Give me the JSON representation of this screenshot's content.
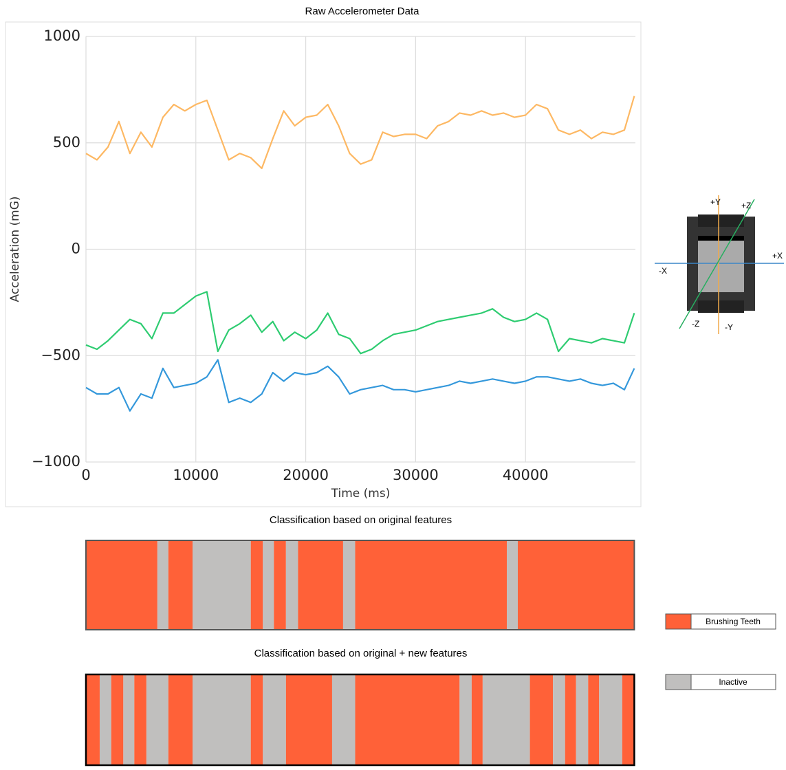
{
  "chart_data": [
    {
      "type": "line",
      "title": "Raw Accelerometer Data",
      "x_label": "Time (ms)",
      "y_label": "Acceleration (mG)",
      "xlim": [
        0,
        50000
      ],
      "ylim": [
        -1000,
        1000
      ],
      "xticks": [
        0,
        10000,
        20000,
        30000,
        40000
      ],
      "yticks": [
        {
          "value": -1000,
          "label": "−1000"
        },
        {
          "value": -500,
          "label": "−500"
        },
        0,
        500,
        1000
      ],
      "grid": true,
      "x": [
        0,
        1000,
        2000,
        3000,
        4000,
        5000,
        6000,
        7000,
        8000,
        9000,
        10000,
        11000,
        12000,
        13000,
        14000,
        15000,
        16000,
        17000,
        18000,
        19000,
        20000,
        21000,
        22000,
        23000,
        24000,
        25000,
        26000,
        27000,
        28000,
        29000,
        30000,
        31000,
        32000,
        33000,
        34000,
        35000,
        36000,
        37000,
        38000,
        39000,
        40000,
        41000,
        42000,
        43000,
        44000,
        45000,
        46000,
        47000,
        48000,
        49000,
        49900
      ],
      "series": [
        {
          "color": "#fdb863",
          "values": [
            450,
            420,
            480,
            600,
            450,
            550,
            480,
            620,
            680,
            650,
            680,
            700,
            560,
            420,
            450,
            430,
            380,
            520,
            650,
            580,
            620,
            630,
            680,
            580,
            450,
            400,
            420,
            550,
            530,
            540,
            540,
            520,
            580,
            600,
            640,
            630,
            650,
            630,
            640,
            620,
            630,
            680,
            660,
            560,
            540,
            560,
            520,
            550,
            540,
            560,
            720
          ]
        },
        {
          "color": "#2ecc71",
          "values": [
            -450,
            -470,
            -430,
            -380,
            -330,
            -350,
            -420,
            -300,
            -300,
            -260,
            -220,
            -200,
            -480,
            -380,
            -350,
            -310,
            -390,
            -340,
            -430,
            -390,
            -420,
            -380,
            -300,
            -400,
            -420,
            -490,
            -470,
            -430,
            -400,
            -390,
            -380,
            -360,
            -340,
            -330,
            -320,
            -310,
            -300,
            -280,
            -320,
            -340,
            -330,
            -300,
            -330,
            -480,
            -420,
            -430,
            -440,
            -420,
            -430,
            -440,
            -300
          ]
        },
        {
          "color": "#3498db",
          "values": [
            -650,
            -680,
            -680,
            -650,
            -760,
            -680,
            -700,
            -560,
            -650,
            -640,
            -630,
            -600,
            -520,
            -720,
            -700,
            -720,
            -680,
            -580,
            -620,
            -580,
            -590,
            -580,
            -550,
            -600,
            -680,
            -660,
            -650,
            -640,
            -660,
            -660,
            -670,
            -660,
            -650,
            -640,
            -620,
            -630,
            -620,
            -610,
            -620,
            -630,
            -620,
            -600,
            -600,
            -610,
            -620,
            -610,
            -630,
            -640,
            -630,
            -660,
            -560
          ]
        }
      ]
    },
    {
      "type": "timeline",
      "title": "Classification based on original features",
      "xlim": [
        0,
        50000
      ],
      "bins": [
        0,
        6500,
        7500,
        9700,
        15000,
        16100,
        17100,
        18200,
        19300,
        23400,
        24500,
        38300,
        39300,
        49900
      ],
      "classes": [
        "Brushing Teeth",
        "Inactive",
        "Brushing Teeth",
        "Inactive",
        "Brushing Teeth",
        "Inactive",
        "Brushing Teeth",
        "Inactive",
        "Brushing Teeth",
        "Inactive",
        "Brushing Teeth",
        "Inactive",
        "Brushing Teeth"
      ]
    },
    {
      "type": "timeline",
      "title": "Classification based on original + new features",
      "xlim": [
        0,
        50000
      ],
      "bins": [
        0,
        1250,
        2300,
        3400,
        4400,
        5500,
        7500,
        9700,
        15000,
        16100,
        18200,
        22400,
        24500,
        34000,
        35100,
        36100,
        40400,
        42500,
        43600,
        44600,
        45700,
        46700,
        48800,
        49900
      ],
      "classes": [
        "Brushing Teeth",
        "Inactive",
        "Brushing Teeth",
        "Inactive",
        "Brushing Teeth",
        "Inactive",
        "Brushing Teeth",
        "Inactive",
        "Brushing Teeth",
        "Inactive",
        "Brushing Teeth",
        "Inactive",
        "Brushing Teeth",
        "Inactive",
        "Brushing Teeth",
        "Inactive",
        "Brushing Teeth",
        "Inactive",
        "Brushing Teeth",
        "Inactive",
        "Brushing Teeth",
        "Inactive",
        "Brushing Teeth"
      ]
    }
  ],
  "legend": [
    {
      "name": "Brushing Teeth",
      "color": "#ff6138"
    },
    {
      "name": "Inactive",
      "color": "#c0bfbe"
    }
  ],
  "diagram": {
    "labels": [
      "+Y",
      "+Z",
      "+X",
      "-X",
      "-Z",
      "-Y"
    ]
  }
}
